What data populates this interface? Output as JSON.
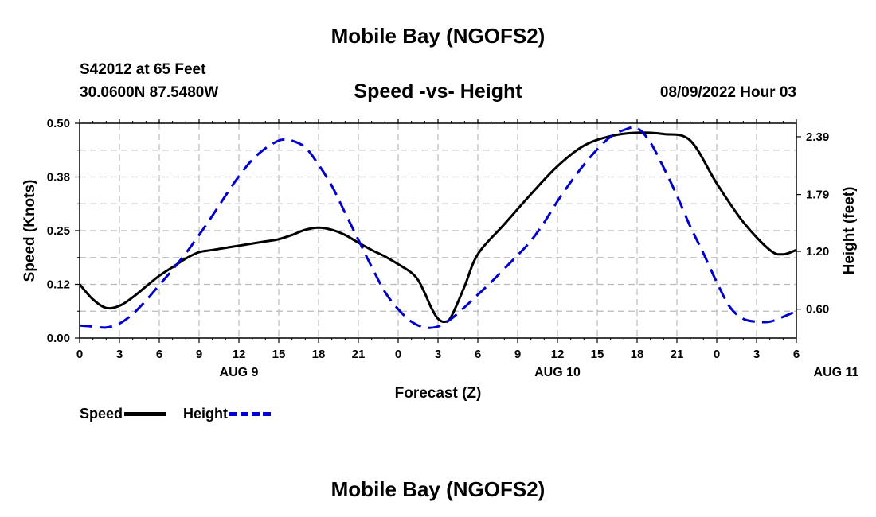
{
  "header": {
    "title": "Mobile Bay (NGOFS2)",
    "station": "S42012 at 65 Feet",
    "coords": "30.0600N  87.5480W",
    "subtitle": "Speed -vs- Height",
    "datetime": "08/09/2022 Hour 03"
  },
  "footer": {
    "title": "Mobile Bay (NGOFS2)"
  },
  "legend": {
    "speed": "Speed",
    "height": "Height"
  },
  "colors": {
    "speed": "#000000",
    "height": "#0000cc",
    "grid": "#bbbbbb"
  },
  "chart_data": {
    "type": "line",
    "xlabel": "Forecast (Z)",
    "ylabel": "Speed (Knots)",
    "y2label": "Height (feet)",
    "x_tick_labels": [
      "0",
      "3",
      "6",
      "9",
      "12",
      "15",
      "18",
      "21",
      "0",
      "3",
      "6",
      "9",
      "12",
      "15",
      "18",
      "21",
      "0",
      "3",
      "6"
    ],
    "date_labels": [
      {
        "text": "AUG 9",
        "hour": 12
      },
      {
        "text": "AUG 10",
        "hour": 36
      },
      {
        "text": "AUG 11",
        "hour": 57
      }
    ],
    "xlim": [
      0,
      54
    ],
    "ylim": [
      0,
      0.5
    ],
    "y_ticks": [
      "0.00",
      "0.12",
      "0.25",
      "0.38",
      "0.50"
    ],
    "y2lim": [
      0.3,
      2.53
    ],
    "y2_ticks": [
      "0.60",
      "1.20",
      "1.79",
      "2.39"
    ],
    "grid": true,
    "series": [
      {
        "name": "Speed",
        "axis": "left",
        "style": "solid",
        "x": [
          0,
          1,
          2,
          3,
          4,
          5,
          6,
          7,
          8,
          9,
          10,
          12,
          14,
          15,
          16,
          17,
          18,
          19,
          20,
          21,
          22,
          23,
          24,
          25,
          25.5,
          26,
          26.5,
          27,
          27.5,
          28,
          29,
          30,
          32,
          34,
          36,
          38,
          40,
          42,
          44,
          46,
          48,
          50,
          52,
          53,
          54
        ],
        "y": [
          0.125,
          0.09,
          0.07,
          0.075,
          0.095,
          0.12,
          0.145,
          0.165,
          0.185,
          0.2,
          0.205,
          0.215,
          0.225,
          0.23,
          0.24,
          0.252,
          0.257,
          0.252,
          0.24,
          0.222,
          0.205,
          0.19,
          0.172,
          0.152,
          0.135,
          0.105,
          0.07,
          0.045,
          0.038,
          0.05,
          0.12,
          0.195,
          0.265,
          0.335,
          0.4,
          0.448,
          0.47,
          0.478,
          0.475,
          0.46,
          0.36,
          0.27,
          0.205,
          0.195,
          0.205
        ]
      },
      {
        "name": "Height",
        "axis": "right",
        "style": "dashed",
        "x": [
          0,
          1,
          2,
          3,
          4,
          5,
          6,
          7,
          8,
          9,
          10,
          11,
          12,
          13,
          14,
          15,
          15.5,
          16,
          17,
          18,
          19,
          20,
          21,
          22,
          23,
          24,
          25,
          26,
          27,
          28,
          29,
          30,
          31,
          32,
          33,
          34,
          35,
          36,
          37,
          38,
          39,
          40,
          41,
          42,
          43,
          44,
          45,
          46,
          47,
          48,
          49,
          50,
          51,
          52,
          53,
          54
        ],
        "y": [
          0.43,
          0.42,
          0.41,
          0.45,
          0.55,
          0.69,
          0.85,
          1.01,
          1.18,
          1.37,
          1.57,
          1.78,
          1.98,
          2.15,
          2.27,
          2.35,
          2.36,
          2.35,
          2.28,
          2.1,
          1.88,
          1.6,
          1.32,
          1.04,
          0.78,
          0.6,
          0.47,
          0.41,
          0.42,
          0.5,
          0.62,
          0.75,
          0.88,
          1.02,
          1.16,
          1.31,
          1.5,
          1.72,
          1.92,
          2.1,
          2.26,
          2.39,
          2.46,
          2.48,
          2.33,
          2.07,
          1.78,
          1.46,
          1.18,
          0.88,
          0.62,
          0.5,
          0.47,
          0.47,
          0.52,
          0.58
        ]
      }
    ]
  }
}
